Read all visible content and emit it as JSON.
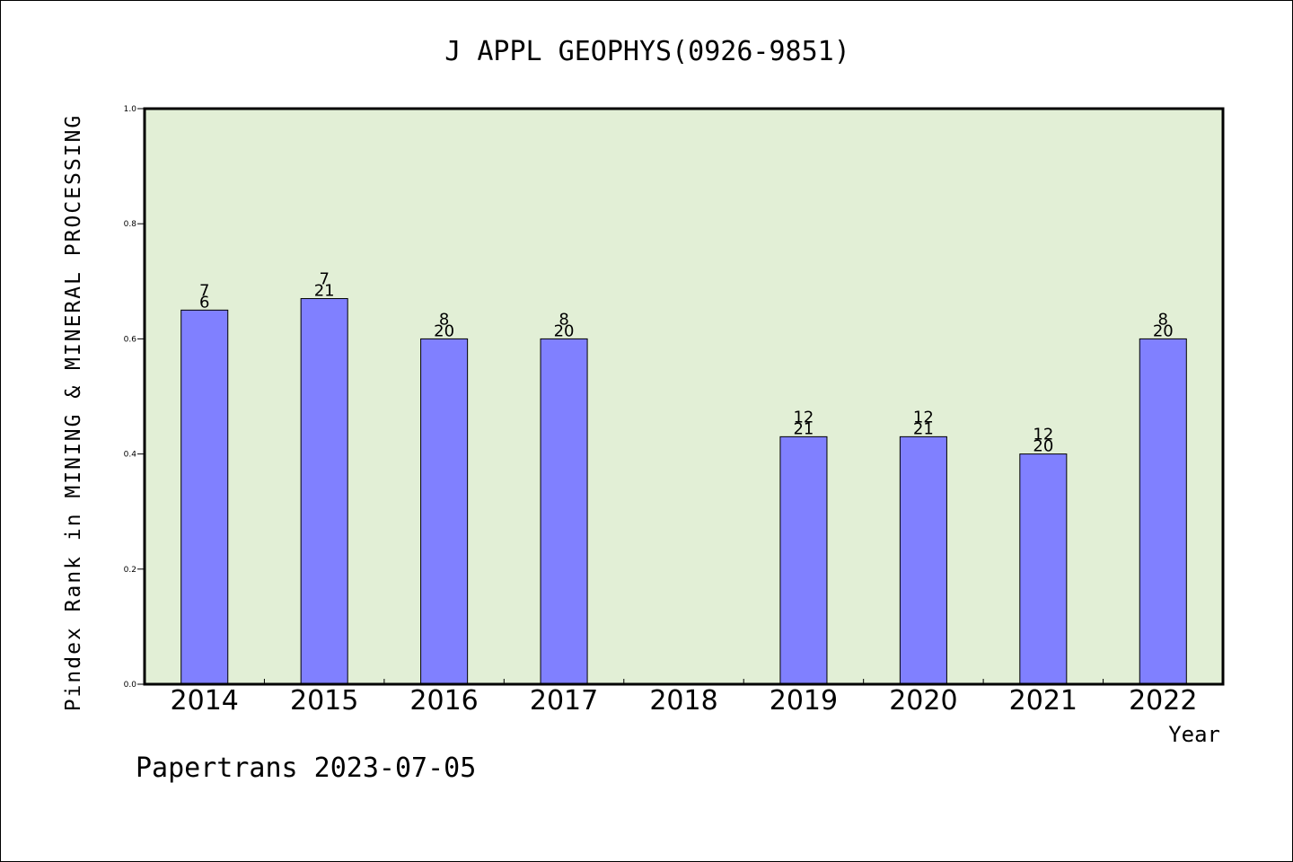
{
  "chart_data": {
    "type": "bar",
    "title": "J APPL GEOPHYS(0926-9851)",
    "xlabel": "Year",
    "ylabel": "Pindex Rank in MINING & MINERAL PROCESSING",
    "ylim": [
      0.0,
      1.0
    ],
    "yticks": [
      "0.0",
      "0.2",
      "0.4",
      "0.6",
      "0.8",
      "1.0"
    ],
    "categories": [
      "2014",
      "2015",
      "2016",
      "2017",
      "2018",
      "2019",
      "2020",
      "2021",
      "2022"
    ],
    "values": [
      0.65,
      0.67,
      0.6,
      0.6,
      null,
      0.43,
      0.43,
      0.4,
      0.6
    ],
    "labels_top": [
      "7",
      "7",
      "8",
      "8",
      "",
      "12",
      "12",
      "12",
      "8"
    ],
    "labels_bottom": [
      "6",
      "21",
      "20",
      "20",
      "",
      "21",
      "21",
      "20",
      "20"
    ],
    "grid": false,
    "colors": {
      "plot_bg": "#e2efd6",
      "bar_fill": "#8080ff",
      "bar_stroke": "#000000"
    }
  },
  "footer": "Papertrans 2023-07-05"
}
